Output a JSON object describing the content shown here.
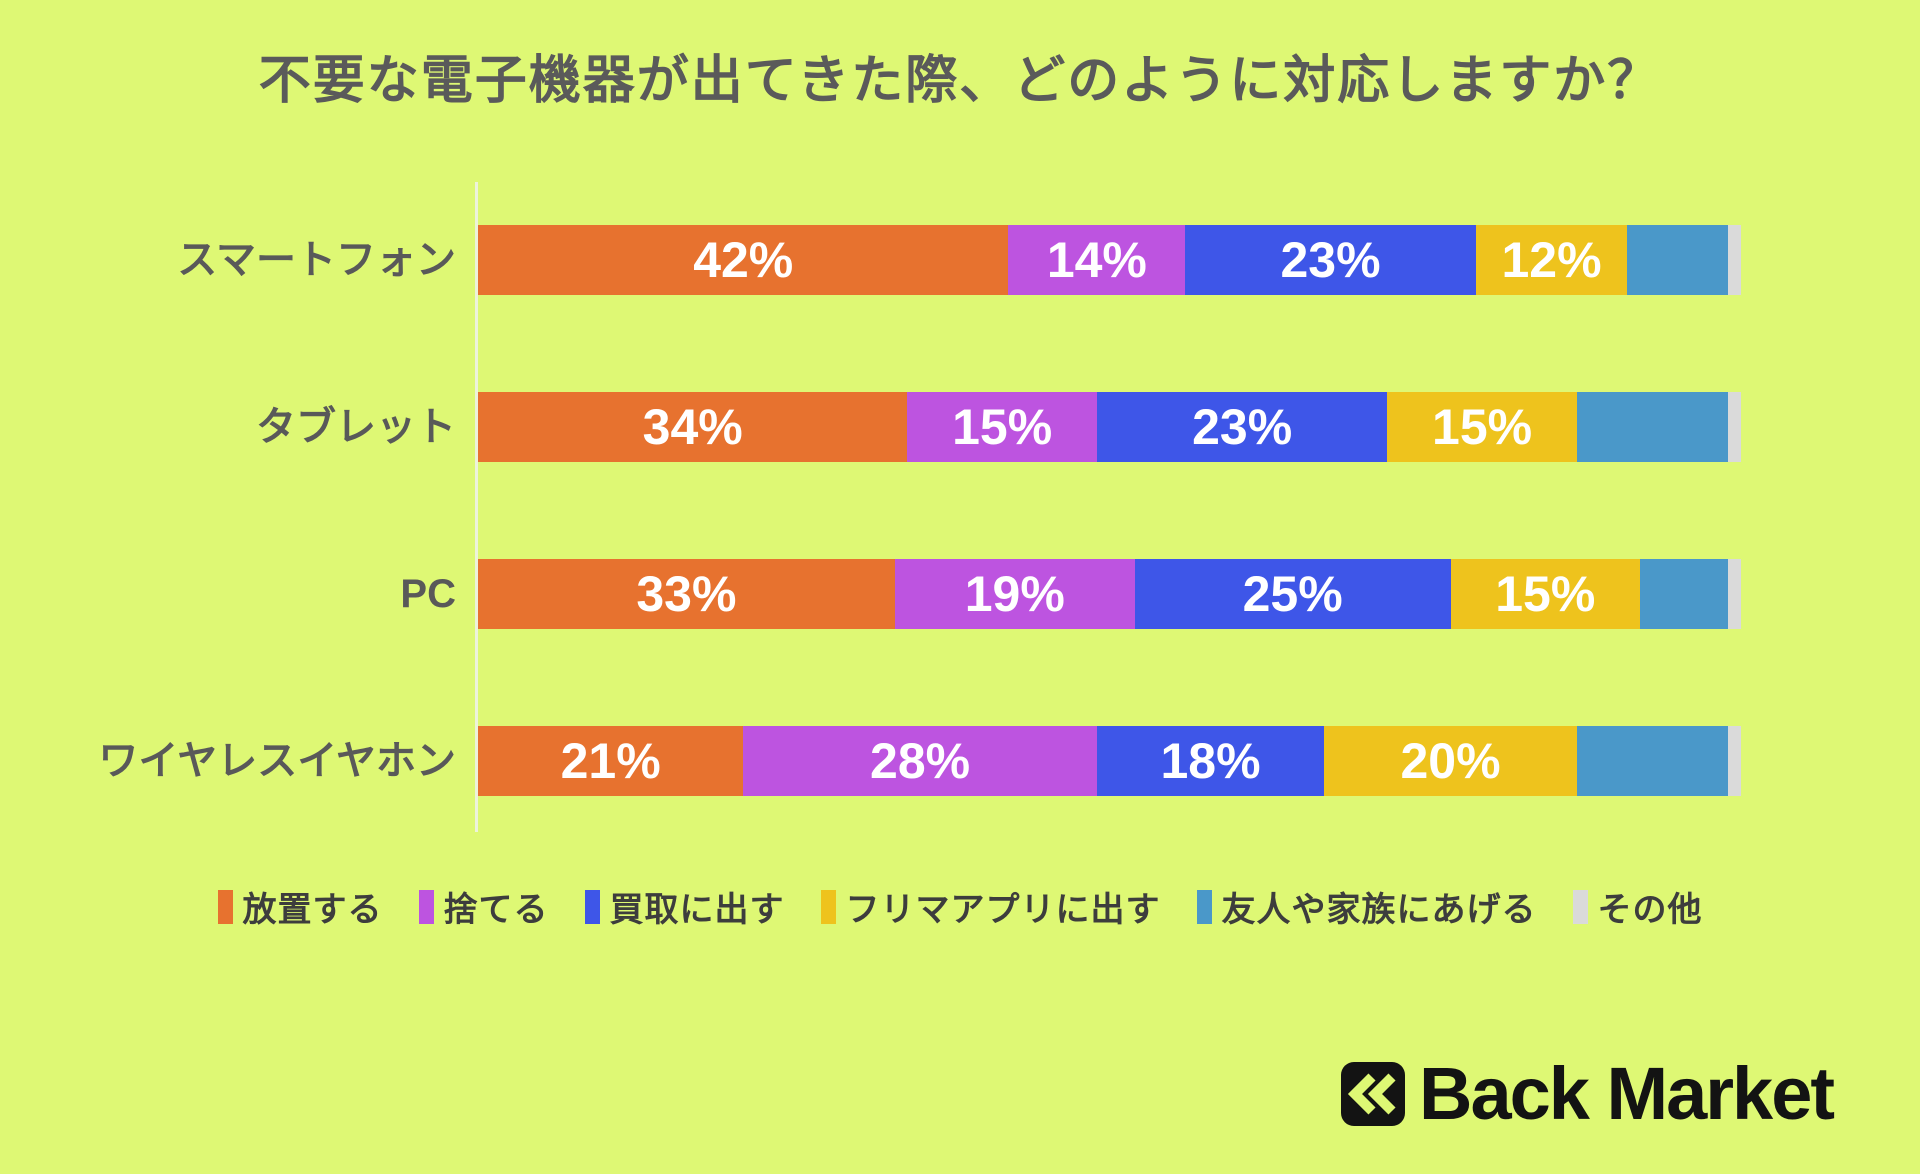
{
  "title": "不要な電子機器が出てきた際、どのように対応しますか？",
  "chart_data": {
    "type": "bar",
    "orientation": "horizontal",
    "stacked": true,
    "unit": "%",
    "xlim": [
      0,
      100
    ],
    "grid": false,
    "legend_position": "bottom",
    "categories": [
      "スマートフォン",
      "タブレット",
      "PC",
      "ワイヤレスイヤホン"
    ],
    "series": [
      {
        "name": "放置する",
        "color": "#E7722F",
        "values": [
          42,
          34,
          33,
          21
        ],
        "labels_shown": true
      },
      {
        "name": "捨てる",
        "color": "#BD54E0",
        "values": [
          14,
          15,
          19,
          28
        ],
        "labels_shown": true
      },
      {
        "name": "買取に出す",
        "color": "#3E56E8",
        "values": [
          23,
          23,
          25,
          18
        ],
        "labels_shown": true
      },
      {
        "name": "フリマアプリに出す",
        "color": "#EEC31D",
        "values": [
          12,
          15,
          15,
          20
        ],
        "labels_shown": true
      },
      {
        "name": "友人や家族にあげる",
        "color": "#4A98C9",
        "values": [
          8,
          12,
          7,
          12
        ],
        "labels_shown": false
      },
      {
        "name": "その他",
        "color": "#DADADA",
        "values": [
          1,
          1,
          1,
          1
        ],
        "labels_shown": false
      }
    ]
  },
  "logo": {
    "wordmark": "Back Market",
    "icon": "double-chevron-left-icon"
  },
  "colors": {
    "background": "#DEF874",
    "title_text": "#5A5A5A",
    "category_text": "#595959",
    "value_text": "#FFFFFF",
    "legend_text": "#3D3D3D",
    "axis_line": "#EDF3DB",
    "logo_black": "#131313"
  }
}
